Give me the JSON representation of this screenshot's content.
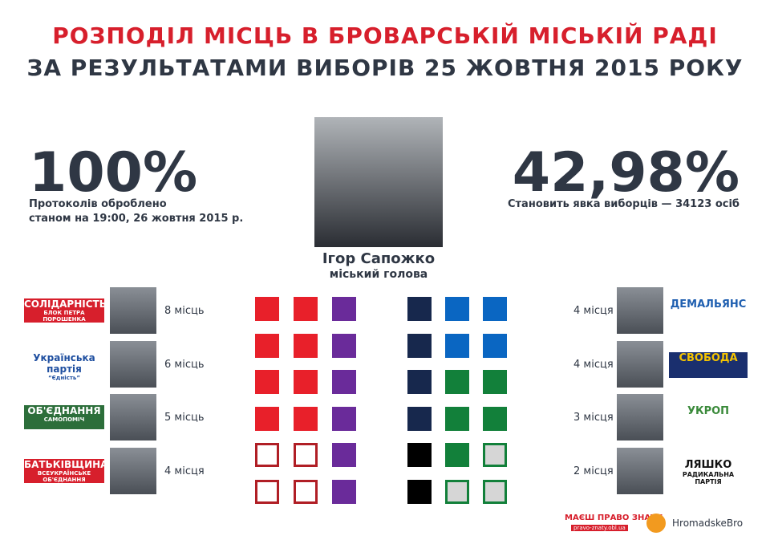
{
  "header": {
    "title": "РОЗПОДІЛ МІСЦЬ В БРОВАРСЬКІЙ МІСЬКІЙ РАДІ",
    "subtitle": "ЗА РЕЗУЛЬТАТАМИ ВИБОРІВ 25 ЖОВТНЯ 2015 РОКУ"
  },
  "stats": {
    "left": {
      "value": "100%",
      "line1": "Протоколів оброблено",
      "line2": "станом на 19:00, 26 жовтня 2015 р."
    },
    "right": {
      "value": "42,98%",
      "line1": "Становить явка виборців — 34123 осіб"
    }
  },
  "mayor": {
    "name": "Ігор Сапожко",
    "role": "міський голова"
  },
  "parties_left": [
    {
      "logo": [
        "СОЛІДАРНІСТЬ",
        "БЛОК ПЕТРА ПОРОШЕНКА"
      ],
      "seats": "8 місць"
    },
    {
      "logo": [
        "Українська партія",
        "“Єдність”"
      ],
      "seats": "6 місць"
    },
    {
      "logo": [
        "ОБ'ЄДНАННЯ",
        "САМОПОМІЧ"
      ],
      "seats": "5 місць"
    },
    {
      "logo": [
        "БАТЬКІВЩИНА",
        "ВСЕУКРАЇНСЬКЕ ОБ'ЄДНАННЯ"
      ],
      "seats": "4 місця"
    }
  ],
  "parties_right": [
    {
      "logo": [
        "ДЕМАЛЬЯНС"
      ],
      "seats": "4 місця"
    },
    {
      "logo": [
        "СВОБОДА"
      ],
      "seats": "4 місця"
    },
    {
      "logo": [
        "УКРОП"
      ],
      "seats": "3 місця"
    },
    {
      "logo": [
        "ЛЯШКО",
        "РАДИКАЛЬНА ПАРТІЯ"
      ],
      "seats": "2 місця"
    }
  ],
  "footer": {
    "left": "МАЄШ ПРАВО ЗНАТИ",
    "left_url": "pravo-znaty.obl.ua",
    "right": "HromadskeBro"
  }
}
